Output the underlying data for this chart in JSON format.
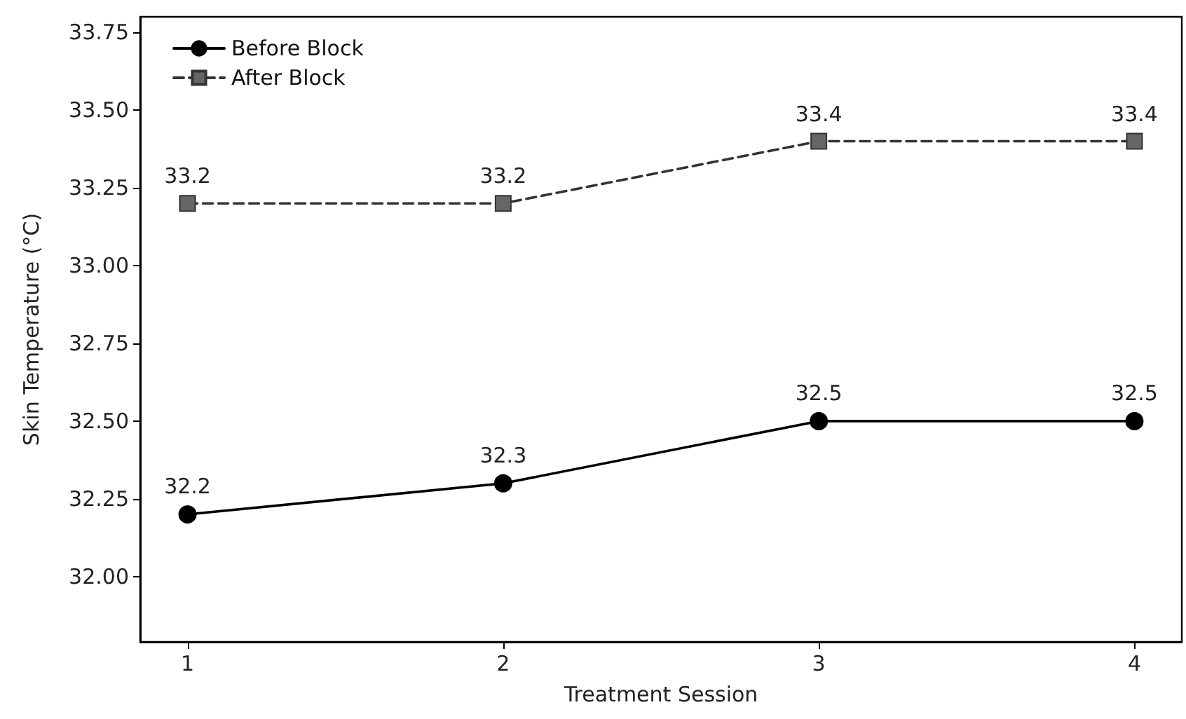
{
  "chart_data": {
    "type": "line",
    "xlabel": "Treatment Session",
    "ylabel": "Skin Temperature (°C)",
    "x": [
      1,
      2,
      3,
      4
    ],
    "series": [
      {
        "name": "Before Block",
        "color": "#000000",
        "values": [
          32.2,
          32.3,
          32.5,
          32.5
        ],
        "marker": "circle",
        "line_style": "solid"
      },
      {
        "name": "After Block",
        "color": "#666666",
        "values": [
          33.2,
          33.2,
          33.4,
          33.4
        ],
        "marker": "square",
        "line_style": "dashed"
      }
    ],
    "xlim": [
      0.85,
      4.15
    ],
    "xticks": [
      1,
      2,
      3,
      4
    ],
    "ylim": [
      31.79,
      33.8
    ],
    "yticks": [
      "32.00",
      "32.25",
      "32.50",
      "32.75",
      "33.00",
      "33.25",
      "33.50",
      "33.75"
    ],
    "data_labels": true,
    "legend": "top left",
    "grid": false
  }
}
